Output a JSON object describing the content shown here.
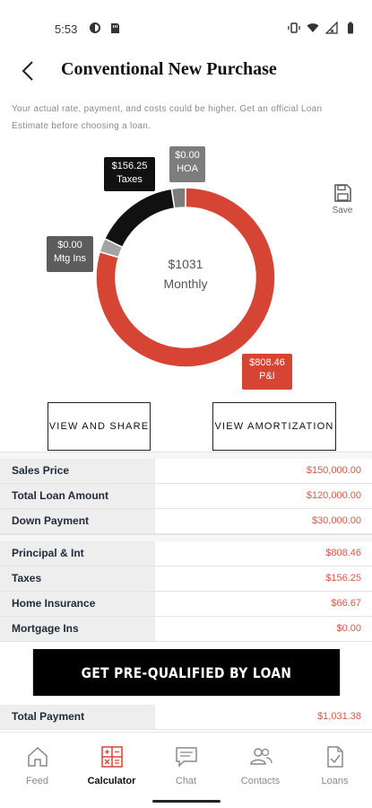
{
  "status_bar": {
    "time": "5:53"
  },
  "header": {
    "title": "Conventional New Purchase"
  },
  "disclaimer": "Your actual rate, payment, and costs could be higher. Get an official Loan Estimate before choosing a loan.",
  "chart_data": {
    "type": "pie",
    "center_value": "$1031",
    "center_label": "Monthly",
    "slices": [
      {
        "name": "P&I",
        "value": 808.46,
        "display": "$808.46",
        "color": "#d64533"
      },
      {
        "name": "Mtg Ins",
        "value": 0.0,
        "display": "$0.00",
        "color": "#a3a3a3"
      },
      {
        "name": "Taxes",
        "value": 156.25,
        "display": "$156.25",
        "color": "#111111"
      },
      {
        "name": "HOA",
        "value": 0.0,
        "display": "$0.00",
        "color": "#7d7d7d"
      }
    ]
  },
  "save": {
    "label": "Save"
  },
  "buttons": {
    "share": "VIEW AND SHARE",
    "amortization": "VIEW AMORTIZATION"
  },
  "table": {
    "group1": [
      {
        "label": "Sales Price",
        "value": "$150,000.00"
      },
      {
        "label": "Total Loan Amount",
        "value": "$120,000.00"
      },
      {
        "label": "Down Payment",
        "value": "$30,000.00"
      }
    ],
    "group2": [
      {
        "label": "Principal & Int",
        "value": "$808.46"
      },
      {
        "label": "Taxes",
        "value": "$156.25"
      },
      {
        "label": "Home Insurance",
        "value": "$66.67"
      },
      {
        "label": "Mortgage Ins",
        "value": "$0.00"
      }
    ],
    "total": {
      "label": "Total Payment",
      "value": "$1,031.38"
    }
  },
  "cta": {
    "label": "GET PRE-QUALIFIED BY LOAN"
  },
  "nav": {
    "feed": "Feed",
    "calculator": "Calculator",
    "chat": "Chat",
    "contacts": "Contacts",
    "loans": "Loans"
  },
  "colors": {
    "accent": "#d64533",
    "value_text": "#d9574a",
    "cta_bg": "#000000"
  }
}
